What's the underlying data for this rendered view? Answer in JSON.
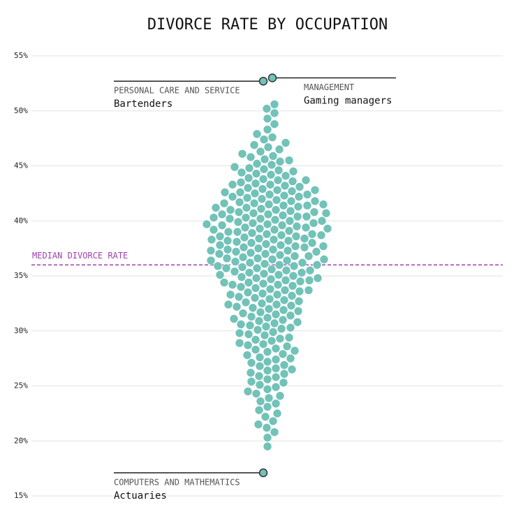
{
  "chart_data": {
    "type": "beeswarm",
    "title": "DIVORCE RATE BY OCCUPATION",
    "ylim": [
      15,
      55
    ],
    "yticks": [
      {
        "value": 15,
        "label": "15%"
      },
      {
        "value": 20,
        "label": "20%"
      },
      {
        "value": 25,
        "label": "25%"
      },
      {
        "value": 30,
        "label": "30%"
      },
      {
        "value": 35,
        "label": "35%"
      },
      {
        "value": 40,
        "label": "40%"
      },
      {
        "value": 45,
        "label": "45%"
      },
      {
        "value": 50,
        "label": "50%"
      },
      {
        "value": 55,
        "label": "55%"
      }
    ],
    "grid": true,
    "color": "#72c2b8",
    "median": {
      "label": "MEDIAN DIVORCE RATE",
      "value": 36,
      "color": "#a040b0"
    },
    "highlights": [
      {
        "category": "PERSONAL CARE AND SERVICE",
        "name": "Bartenders",
        "value": 52.7,
        "side": "left"
      },
      {
        "category": "MANAGEMENT",
        "name": "Gaming managers",
        "value": 53.0,
        "side": "right"
      },
      {
        "category": "COMPUTERS AND MATHEMATICS",
        "name": "Actuaries",
        "value": 17.1,
        "side": "left"
      }
    ],
    "values": [
      19.5,
      20.3,
      20.8,
      21.2,
      21.5,
      21.8,
      22.2,
      22.5,
      22.8,
      23.1,
      23.4,
      23.6,
      23.9,
      24.1,
      24.3,
      24.5,
      24.7,
      24.9,
      25.1,
      25.3,
      25.4,
      25.6,
      25.8,
      25.9,
      26.1,
      26.2,
      26.4,
      26.5,
      26.6,
      26.8,
      26.9,
      27.1,
      27.2,
      27.4,
      27.5,
      27.6,
      27.8,
      27.9,
      28.1,
      28.2,
      28.3,
      28.4,
      28.6,
      28.7,
      28.8,
      28.9,
      29.1,
      29.2,
      29.3,
      29.4,
      29.6,
      29.7,
      29.8,
      29.9,
      30.1,
      30.2,
      30.3,
      30.4,
      30.5,
      30.6,
      30.7,
      30.8,
      30.9,
      31.0,
      31.1,
      31.2,
      31.3,
      31.4,
      31.5,
      31.6,
      31.7,
      31.8,
      31.9,
      32.0,
      32.1,
      32.2,
      32.3,
      32.4,
      32.5,
      32.6,
      32.7,
      32.8,
      32.9,
      32.4,
      33.0,
      33.1,
      33.2,
      33.3,
      33.4,
      33.5,
      33.6,
      33.7,
      33.8,
      33.9,
      33.3,
      33.7,
      34.0,
      34.1,
      34.2,
      34.3,
      34.4,
      34.5,
      34.6,
      34.7,
      34.8,
      34.9,
      34.2,
      34.4,
      34.6,
      34.8,
      35.0,
      35.1,
      35.2,
      35.3,
      35.4,
      35.5,
      35.6,
      35.7,
      35.8,
      35.9,
      35.1,
      35.3,
      35.5,
      35.7,
      35.9,
      36.0,
      36.1,
      36.2,
      36.3,
      36.4,
      36.5,
      36.6,
      36.7,
      36.8,
      36.9,
      36.0,
      36.2,
      36.4,
      36.6,
      36.8,
      36.5,
      37.0,
      37.1,
      37.2,
      37.3,
      37.4,
      37.5,
      37.6,
      37.7,
      37.8,
      37.9,
      37.0,
      37.2,
      37.4,
      37.6,
      37.8,
      37.3,
      37.7,
      38.0,
      38.1,
      38.2,
      38.3,
      38.4,
      38.5,
      38.6,
      38.7,
      38.8,
      38.9,
      38.0,
      38.2,
      38.4,
      38.6,
      38.8,
      38.3,
      38.7,
      39.0,
      39.1,
      39.2,
      39.3,
      39.4,
      39.5,
      39.6,
      39.7,
      39.8,
      39.9,
      39.0,
      39.2,
      39.4,
      39.6,
      39.8,
      39.3,
      39.7,
      40.0,
      40.1,
      40.2,
      40.3,
      40.4,
      40.5,
      40.6,
      40.7,
      40.8,
      40.9,
      40.0,
      40.2,
      40.4,
      40.6,
      40.8,
      40.3,
      40.7,
      41.0,
      41.1,
      41.2,
      41.3,
      41.4,
      41.5,
      41.6,
      41.7,
      41.8,
      41.9,
      41.0,
      41.2,
      41.4,
      41.6,
      41.8,
      41.5,
      42.0,
      42.1,
      42.2,
      42.3,
      42.4,
      42.5,
      42.6,
      42.7,
      42.8,
      42.9,
      42.2,
      42.4,
      42.6,
      42.8,
      43.0,
      43.1,
      43.2,
      43.3,
      43.4,
      43.5,
      43.6,
      43.7,
      43.8,
      43.9,
      43.3,
      43.7,
      44.1,
      44.2,
      44.3,
      44.4,
      44.5,
      44.6,
      44.7,
      44.8,
      44.9,
      45.1,
      45.2,
      45.4,
      45.5,
      45.6,
      45.8,
      45.9,
      46.1,
      46.3,
      46.5,
      46.7,
      46.9,
      47.1,
      47.4,
      47.6,
      47.9,
      48.3,
      48.8,
      49.3,
      49.8,
      50.2,
      50.6
    ]
  }
}
